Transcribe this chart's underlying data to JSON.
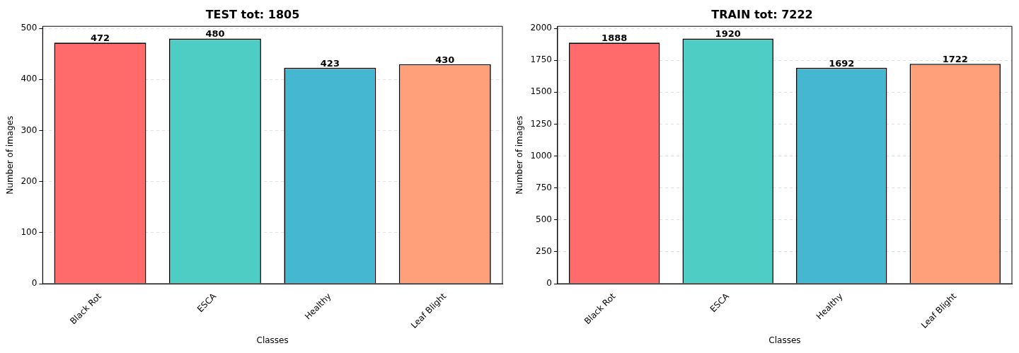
{
  "chart_data": [
    {
      "type": "bar",
      "title": "TEST tot: 1805",
      "xlabel": "Classes",
      "ylabel": "Number of images",
      "categories": [
        "Black Rot",
        "ESCA",
        "Healthy",
        "Leaf Blight"
      ],
      "values": [
        472,
        480,
        423,
        430
      ],
      "colors": [
        "#ff6b6b",
        "#4ecdc4",
        "#45b7d1",
        "#ffa07a"
      ],
      "ylim": [
        0,
        504
      ],
      "yticks": [
        0,
        100,
        200,
        300,
        400,
        500
      ],
      "grid": "y",
      "data_labels": true
    },
    {
      "type": "bar",
      "title": "TRAIN tot: 7222",
      "xlabel": "Classes",
      "ylabel": "Number of images",
      "categories": [
        "Black Rot",
        "ESCA",
        "Healthy",
        "Leaf Blight"
      ],
      "values": [
        1888,
        1920,
        1692,
        1722
      ],
      "colors": [
        "#ff6b6b",
        "#4ecdc4",
        "#45b7d1",
        "#ffa07a"
      ],
      "ylim": [
        0,
        2016
      ],
      "yticks": [
        0,
        250,
        500,
        750,
        1000,
        1250,
        1500,
        1750,
        2000
      ],
      "grid": "y",
      "data_labels": true
    }
  ]
}
